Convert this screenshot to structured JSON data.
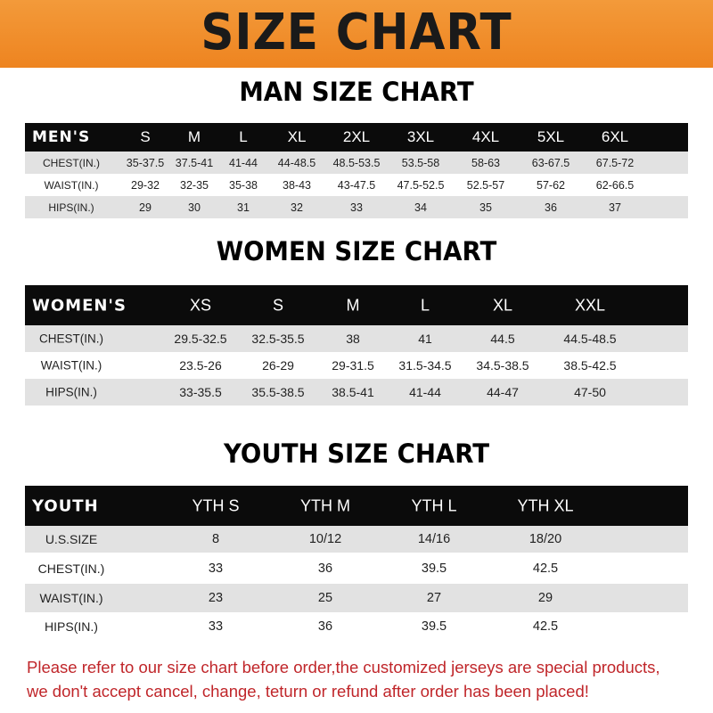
{
  "banner": {
    "title": "SIZE CHART",
    "color": "#f08a24"
  },
  "men": {
    "title": "MAN SIZE CHART",
    "header": [
      "MEN'S",
      "S",
      "M",
      "L",
      "XL",
      "2XL",
      "3XL",
      "4XL",
      "5XL",
      "6XL"
    ],
    "rows": [
      [
        "CHEST(IN.)",
        "35-37.5",
        "37.5-41",
        "41-44",
        "44-48.5",
        "48.5-53.5",
        "53.5-58",
        "58-63",
        "63-67.5",
        "67.5-72"
      ],
      [
        "WAIST(IN.)",
        "29-32",
        "32-35",
        "35-38",
        "38-43",
        "43-47.5",
        "47.5-52.5",
        "52.5-57",
        "57-62",
        "62-66.5"
      ],
      [
        "HIPS(IN.)",
        "29",
        "30",
        "31",
        "32",
        "33",
        "34",
        "35",
        "36",
        "37"
      ]
    ]
  },
  "women": {
    "title": "WOMEN SIZE CHART",
    "header": [
      "WOMEN'S",
      "XS",
      "S",
      "M",
      "L",
      "XL",
      "XXL"
    ],
    "rows": [
      [
        "CHEST(IN.)",
        "29.5-32.5",
        "32.5-35.5",
        "38",
        "41",
        "44.5",
        "44.5-48.5"
      ],
      [
        "WAIST(IN.)",
        "23.5-26",
        "26-29",
        "29-31.5",
        "31.5-34.5",
        "34.5-38.5",
        "38.5-42.5"
      ],
      [
        "HIPS(IN.)",
        "33-35.5",
        "35.5-38.5",
        "38.5-41",
        "41-44",
        "44-47",
        "47-50"
      ]
    ]
  },
  "youth": {
    "title": "YOUTH SIZE CHART",
    "header": [
      "YOUTH",
      "YTH S",
      "YTH M",
      "YTH L",
      "YTH XL"
    ],
    "rows": [
      [
        "U.S.SIZE",
        "8",
        "10/12",
        "14/16",
        "18/20"
      ],
      [
        "CHEST(IN.)",
        "33",
        "36",
        "39.5",
        "42.5"
      ],
      [
        "WAIST(IN.)",
        "23",
        "25",
        "27",
        "29"
      ],
      [
        "HIPS(IN.)",
        "33",
        "36",
        "39.5",
        "42.5"
      ]
    ]
  },
  "notice": {
    "line1": "Please refer to our size chart before order,the customized jerseys are special products,",
    "line2": "we don't accept cancel, change, teturn or refund after order has been placed!"
  }
}
